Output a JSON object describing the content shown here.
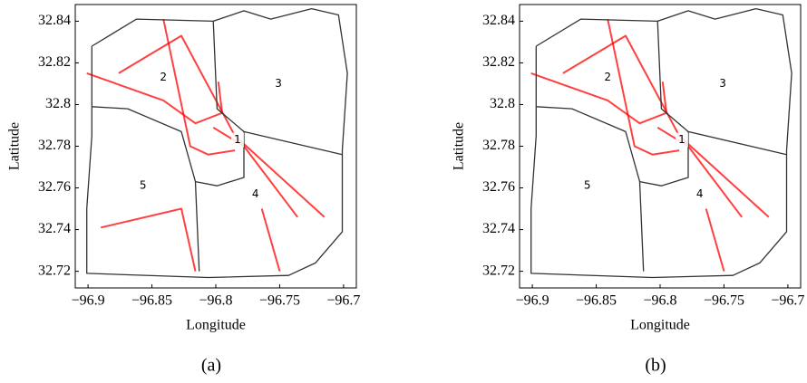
{
  "chart_data": [
    {
      "type": "map",
      "caption": "(a)",
      "xlabel": "Longitude",
      "ylabel": "Latitude",
      "xlim": [
        -96.91,
        -96.69
      ],
      "ylim": [
        32.712,
        32.848
      ],
      "xticks": [
        {
          "value": -96.9,
          "label": "−96.9"
        },
        {
          "value": -96.85,
          "label": "−96.85"
        },
        {
          "value": -96.8,
          "label": "−96.8"
        },
        {
          "value": -96.75,
          "label": "−96.75"
        },
        {
          "value": -96.7,
          "label": "−96.7"
        }
      ],
      "yticks": [
        32.72,
        32.74,
        32.76,
        32.78,
        32.8,
        32.82,
        32.84
      ],
      "series": [
        {
          "color": "#ff0000",
          "x": [
            -96.901,
            -96.841,
            -96.816,
            -96.795,
            -96.798
          ],
          "y": [
            32.815,
            32.802,
            32.791,
            32.796,
            32.811
          ]
        },
        {
          "color": "#ff0000",
          "x": [
            -96.802,
            -96.778,
            -96.757,
            -96.736
          ],
          "y": [
            32.789,
            32.78,
            32.763,
            32.746
          ]
        },
        {
          "color": "#ff0000",
          "x": [
            -96.764,
            -96.75
          ],
          "y": [
            32.75,
            32.72
          ]
        },
        {
          "color": "#ff0000",
          "x": [
            -96.876,
            -96.827,
            -96.785,
            -96.715
          ],
          "y": [
            32.815,
            32.833,
            32.785,
            32.746
          ]
        },
        {
          "color": "#ff0000",
          "x": [
            -96.89,
            -96.827,
            -96.816
          ],
          "y": [
            32.741,
            32.75,
            32.72
          ]
        },
        {
          "color": "#ff0000",
          "x": [
            -96.841,
            -96.82,
            -96.806,
            -96.785
          ],
          "y": [
            32.841,
            32.78,
            32.776,
            32.778
          ]
        },
        {
          "color": "#333333",
          "x": [
            -96.897,
            -96.862,
            -96.802,
            -96.778,
            -96.757,
            -96.725,
            -96.704,
            -96.697,
            -96.701,
            -96.701,
            -96.722,
            -96.743,
            -96.806,
            -96.901,
            -96.901,
            -96.897,
            -96.897
          ],
          "y": [
            32.828,
            32.841,
            32.84,
            32.845,
            32.841,
            32.846,
            32.843,
            32.815,
            32.778,
            32.739,
            32.724,
            32.718,
            32.717,
            32.719,
            32.75,
            32.785,
            32.828
          ]
        },
        {
          "color": "#333333",
          "x": [
            -96.802,
            -96.799,
            -96.778,
            -96.701
          ],
          "y": [
            32.84,
            32.798,
            32.787,
            32.776
          ]
        },
        {
          "color": "#333333",
          "x": [
            -96.897,
            -96.869,
            -96.827,
            -96.816,
            -96.799,
            -96.778,
            -96.778
          ],
          "y": [
            32.799,
            32.798,
            32.787,
            32.763,
            32.761,
            32.765,
            32.787
          ]
        },
        {
          "color": "#333333",
          "x": [
            -96.816,
            -96.813
          ],
          "y": [
            32.763,
            32.72
          ]
        }
      ],
      "annotations": [
        {
          "text": "1",
          "x": -96.783,
          "y": 32.783
        },
        {
          "text": "2",
          "x": -96.841,
          "y": 32.813
        },
        {
          "text": "3",
          "x": -96.751,
          "y": 32.81
        },
        {
          "text": "4",
          "x": -96.769,
          "y": 32.757
        },
        {
          "text": "5",
          "x": -96.857,
          "y": 32.761
        }
      ]
    },
    {
      "type": "map",
      "caption": "(b)",
      "xlabel": "Longitude",
      "ylabel": "Latitude",
      "xlim": [
        -96.91,
        -96.69
      ],
      "ylim": [
        32.712,
        32.848
      ],
      "xticks": [
        {
          "value": -96.9,
          "label": "−96.9"
        },
        {
          "value": -96.85,
          "label": "−96.85"
        },
        {
          "value": -96.8,
          "label": "−96.8"
        },
        {
          "value": -96.75,
          "label": "−96.75"
        },
        {
          "value": -96.7,
          "label": "−96.7"
        }
      ],
      "yticks": [
        32.72,
        32.74,
        32.76,
        32.78,
        32.8,
        32.82,
        32.84
      ],
      "series": [
        {
          "color": "#ff0000",
          "x": [
            -96.901,
            -96.841,
            -96.816,
            -96.795,
            -96.798
          ],
          "y": [
            32.815,
            32.802,
            32.791,
            32.796,
            32.811
          ]
        },
        {
          "color": "#ff0000",
          "x": [
            -96.802,
            -96.778,
            -96.757,
            -96.736
          ],
          "y": [
            32.789,
            32.78,
            32.763,
            32.746
          ]
        },
        {
          "color": "#ff0000",
          "x": [
            -96.764,
            -96.75
          ],
          "y": [
            32.75,
            32.72
          ]
        },
        {
          "color": "#ff0000",
          "x": [
            -96.876,
            -96.827,
            -96.785,
            -96.715
          ],
          "y": [
            32.815,
            32.833,
            32.785,
            32.746
          ]
        },
        {
          "color": "#ff0000",
          "x": [
            -96.841,
            -96.82,
            -96.806,
            -96.785
          ],
          "y": [
            32.841,
            32.78,
            32.776,
            32.778
          ]
        },
        {
          "color": "#333333",
          "x": [
            -96.897,
            -96.862,
            -96.802,
            -96.778,
            -96.757,
            -96.725,
            -96.704,
            -96.697,
            -96.701,
            -96.701,
            -96.722,
            -96.743,
            -96.806,
            -96.901,
            -96.901,
            -96.897,
            -96.897
          ],
          "y": [
            32.828,
            32.841,
            32.84,
            32.845,
            32.841,
            32.846,
            32.843,
            32.815,
            32.778,
            32.739,
            32.724,
            32.718,
            32.717,
            32.719,
            32.75,
            32.785,
            32.828
          ]
        },
        {
          "color": "#333333",
          "x": [
            -96.802,
            -96.799,
            -96.778,
            -96.701
          ],
          "y": [
            32.84,
            32.798,
            32.787,
            32.776
          ]
        },
        {
          "color": "#333333",
          "x": [
            -96.897,
            -96.869,
            -96.827,
            -96.816,
            -96.799,
            -96.778,
            -96.778
          ],
          "y": [
            32.799,
            32.798,
            32.787,
            32.763,
            32.761,
            32.765,
            32.787
          ]
        },
        {
          "color": "#333333",
          "x": [
            -96.816,
            -96.813
          ],
          "y": [
            32.763,
            32.72
          ]
        }
      ],
      "annotations": [
        {
          "text": "1",
          "x": -96.783,
          "y": 32.783
        },
        {
          "text": "2",
          "x": -96.841,
          "y": 32.813
        },
        {
          "text": "3",
          "x": -96.751,
          "y": 32.81
        },
        {
          "text": "4",
          "x": -96.769,
          "y": 32.757
        },
        {
          "text": "5",
          "x": -96.857,
          "y": 32.761
        }
      ]
    }
  ]
}
